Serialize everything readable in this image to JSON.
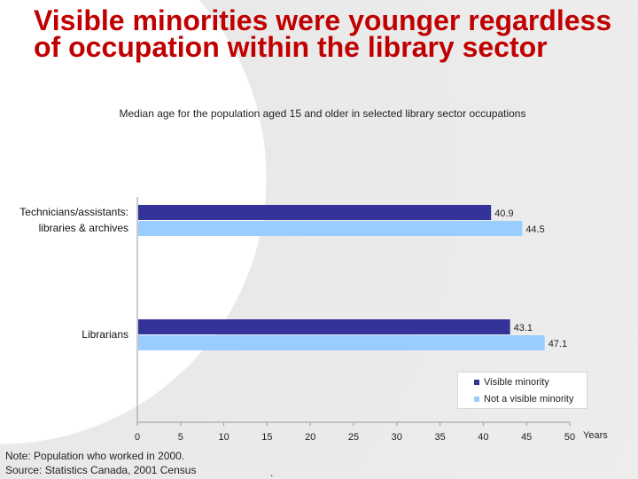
{
  "title": "Visible minorities were younger regardless of occupation within the library sector",
  "chart_data": {
    "type": "bar",
    "orientation": "horizontal",
    "subtitle": "Median age for the population aged 15 and older in selected library sector occupations",
    "categories": [
      "Technicians/assistants: libraries & archives",
      "Librarians"
    ],
    "category_lines": [
      [
        "Technicians/assistants:",
        "libraries & archives"
      ],
      [
        "Librarians"
      ]
    ],
    "series": [
      {
        "name": "Visible minority",
        "values": [
          40.9,
          43.1
        ],
        "color": "#333399"
      },
      {
        "name": "Not a visible minority",
        "values": [
          44.5,
          47.1
        ],
        "color": "#99ccff"
      }
    ],
    "value_labels": [
      [
        "40.9",
        "43.1"
      ],
      [
        "44.5",
        "47.1"
      ]
    ],
    "xlabel": "Years",
    "xlim": [
      0,
      50
    ],
    "xticks": [
      0,
      5,
      10,
      15,
      20,
      25,
      30,
      35,
      40,
      45,
      50
    ],
    "legend_position": "bottom-right",
    "grid": false
  },
  "footnote": {
    "note": "Note: Population who worked in 2000.",
    "source": "Source: Statistics Canada, 2001 Census"
  },
  "stray_mark": "."
}
